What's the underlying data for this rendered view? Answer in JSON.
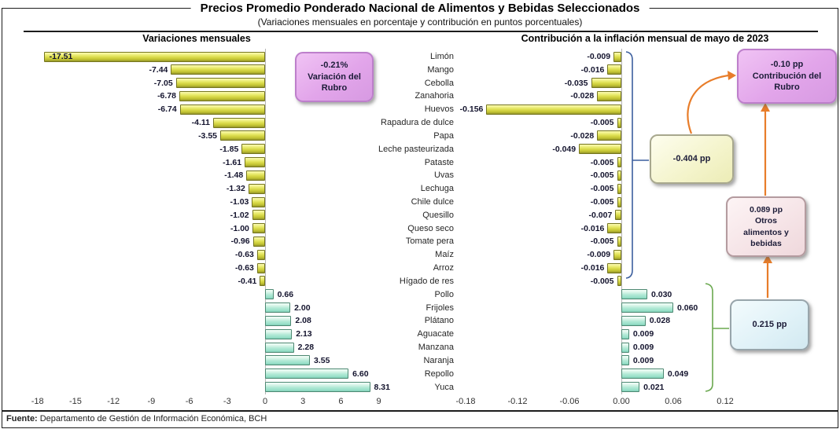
{
  "title": "Precios Promedio Ponderado Nacional de Alimentos y Bebidas Seleccionados",
  "subtitle": "(Variaciones mensuales en porcentaje y contribución en puntos porcentuales)",
  "headers": {
    "left": "Variaciones mensuales",
    "right": "Contribución a la inflación mensual de mayo de 2023"
  },
  "callouts": {
    "variation": {
      "lines": [
        "-0.21%",
        "Variación del",
        "Rubro"
      ],
      "color": "#e2a5ea"
    },
    "contribution": {
      "lines": [
        "-0.10 pp",
        "Contribución del",
        "Rubro"
      ],
      "color": "#e2a5ea"
    },
    "negative_total": {
      "text": "-0.404 pp",
      "color": "#f4f4cb"
    },
    "otros": {
      "lines": [
        "0.089 pp",
        "Otros",
        "alimentos y",
        "bebidas"
      ],
      "color": "#f5e3e6"
    },
    "positive_total": {
      "text": "0.215 pp",
      "color": "#dff1f7"
    }
  },
  "footer": {
    "label": "Fuente:",
    "text": "Departamento de Gestión de Información Económica, BCH"
  },
  "colors": {
    "negative_bar": "#d6d73e",
    "positive_bar": "#a8e6d2",
    "arrow": "#e87d2a",
    "negative_bracket": "#3c5f9e",
    "positive_bracket": "#6aa84f"
  },
  "chart_data": {
    "type": "bar",
    "orientation": "horizontal",
    "grid": false,
    "legend": "none",
    "categories": [
      "Limón",
      "Mango",
      "Cebolla",
      "Zanahoria",
      "Huevos",
      "Rapadura de dulce",
      "Papa",
      "Leche pasteurizada",
      "Pataste",
      "Uvas",
      "Lechuga",
      "Chile dulce",
      "Quesillo",
      "Queso seco",
      "Tomate pera",
      "Maíz",
      "Arroz",
      "Hígado de res",
      "Pollo",
      "Frijoles",
      "Plátano",
      "Aguacate",
      "Manzana",
      "Naranja",
      "Repollo",
      "Yuca"
    ],
    "series": [
      {
        "name": "Variaciones mensuales",
        "unit": "%",
        "decimals": 2,
        "values": [
          -17.51,
          -7.44,
          -7.05,
          -6.78,
          -6.74,
          -4.11,
          -3.55,
          -1.85,
          -1.61,
          -1.48,
          -1.32,
          -1.03,
          -1.02,
          -1.0,
          -0.96,
          -0.63,
          -0.63,
          -0.41,
          0.66,
          2.0,
          2.08,
          2.13,
          2.28,
          3.55,
          6.6,
          8.31
        ],
        "xlim": [
          -18,
          9
        ],
        "xticks": [
          -18,
          -15,
          -12,
          -9,
          -6,
          -3,
          0,
          3,
          6,
          9
        ]
      },
      {
        "name": "Contribución a la inflación mensual de mayo de 2023",
        "unit": "pp",
        "decimals": 3,
        "values": [
          -0.009,
          -0.016,
          -0.035,
          -0.028,
          -0.156,
          -0.005,
          -0.028,
          -0.049,
          -0.005,
          -0.005,
          -0.005,
          -0.005,
          -0.007,
          -0.016,
          -0.005,
          -0.009,
          -0.016,
          -0.005,
          0.03,
          0.06,
          0.028,
          0.009,
          0.009,
          0.009,
          0.049,
          0.021
        ],
        "xlim": [
          -0.18,
          0.12
        ],
        "xticks": [
          -0.18,
          -0.12,
          -0.06,
          0.0,
          0.06,
          0.12
        ]
      }
    ]
  }
}
